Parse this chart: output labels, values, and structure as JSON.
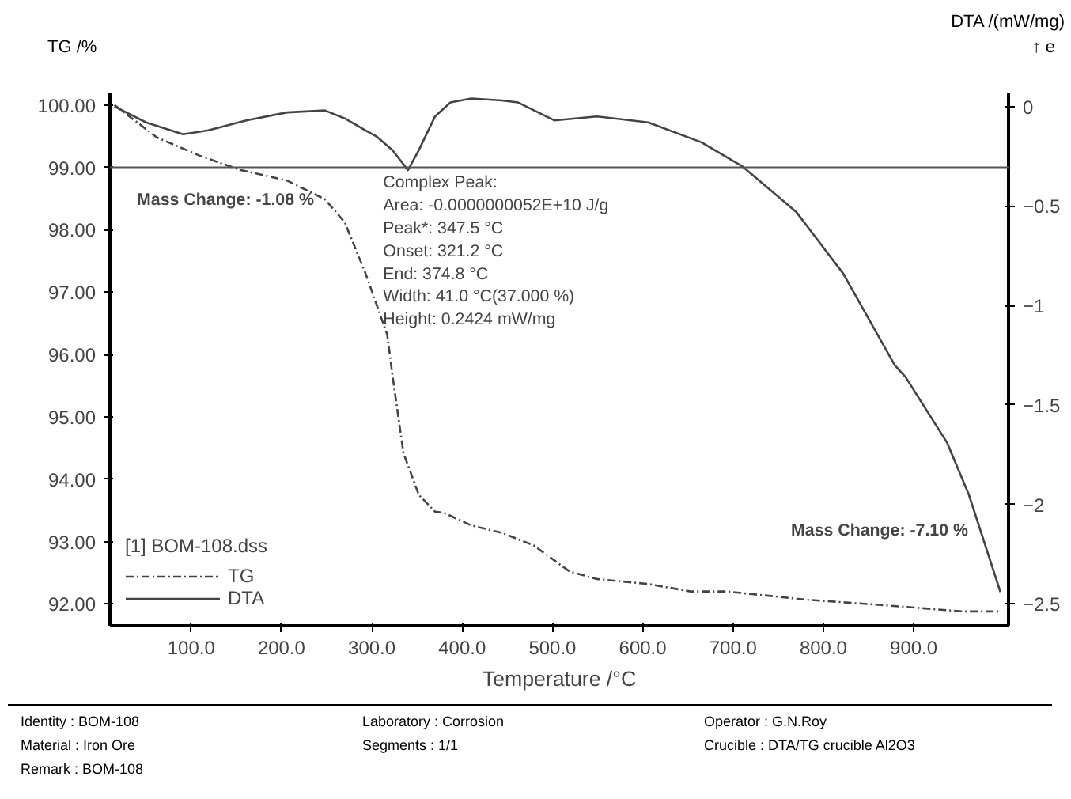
{
  "chart_data": {
    "type": "line",
    "xlabel": "Temperature /°C",
    "ylabel": "TG /%",
    "y2label": "DTA /(mW/mg)",
    "legend_title": "[1] BOM-108.dss",
    "legend": "bottom left",
    "grid": false,
    "marker": "none",
    "xlim": [
      10,
      1005
    ],
    "xticks": [
      {
        "value": 100,
        "label": "100.0"
      },
      {
        "value": 200,
        "label": "200.0"
      },
      {
        "value": 300,
        "label": "300.0"
      },
      {
        "value": 400,
        "label": "400.0"
      },
      {
        "value": 500,
        "label": "500.0"
      },
      {
        "value": 600,
        "label": "600.0"
      },
      {
        "value": 700,
        "label": "700.0"
      },
      {
        "value": 800,
        "label": "800.0"
      },
      {
        "value": 900,
        "label": "900.0"
      }
    ],
    "ylim": [
      91.65,
      100.2
    ],
    "yticks": [
      {
        "value": 92,
        "label": "92.00"
      },
      {
        "value": 93,
        "label": "93.00"
      },
      {
        "value": 94,
        "label": "94.00"
      },
      {
        "value": 95,
        "label": "95.00"
      },
      {
        "value": 96,
        "label": "96.00"
      },
      {
        "value": 97,
        "label": "97.00"
      },
      {
        "value": 98,
        "label": "98.00"
      },
      {
        "value": 99,
        "label": "99.00"
      },
      {
        "value": 100,
        "label": "100.00"
      }
    ],
    "y2lim": [
      -2.61,
      0.07
    ],
    "y2ticks": [
      0,
      -0.5,
      -1,
      -1.5,
      -2,
      -2.5
    ],
    "series": [
      {
        "name": "TG",
        "color": "#444444",
        "line_style": "dashed",
        "x": [
          15,
          62,
          109,
          154,
          206,
          248,
          270,
          293,
          317,
          323,
          335,
          352,
          370,
          380,
          410,
          444,
          479,
          519,
          549,
          606,
          653,
          693,
          780,
          867,
          954,
          996
        ],
        "values": [
          100,
          99.48,
          99.19,
          98.96,
          98.79,
          98.49,
          98.12,
          97.3,
          96.32,
          95.65,
          94.42,
          93.75,
          93.48,
          93.46,
          93.26,
          93.14,
          92.94,
          92.52,
          92.4,
          92.32,
          92.2,
          92.2,
          92.07,
          91.98,
          91.88,
          91.88
        ]
      },
      {
        "name": "DTA",
        "color": "#444444",
        "line_style": "solid",
        "axis": "y2",
        "x": [
          15,
          50,
          91,
          119,
          161,
          206,
          248,
          270,
          293,
          305,
          323,
          340,
          352,
          370,
          387,
          410,
          444,
          462,
          502,
          549,
          606,
          665,
          710,
          770,
          822,
          879,
          891,
          937,
          961,
          996
        ],
        "values": [
          0,
          -0.08,
          -0.14,
          -0.12,
          -0.07,
          -0.03,
          -0.02,
          -0.06,
          -0.12,
          -0.15,
          -0.22,
          -0.32,
          -0.22,
          -0.05,
          0.02,
          0.04,
          0.03,
          0.02,
          -0.07,
          -0.05,
          -0.08,
          -0.18,
          -0.3,
          -0.53,
          -0.84,
          -1.3,
          -1.36,
          -1.69,
          -1.95,
          -2.44
        ]
      }
    ],
    "ref_lines": [
      {
        "axis": "y",
        "value": 99,
        "color": "#555555"
      }
    ],
    "annotations": [
      "Mass Change: -1.08 %",
      "Mass Change: -7.10 %",
      {
        "text": "Complex Peak:\nArea:     -0.0000000052E+10 J/g\nPeak*:   347.5 °C\nOnset:   321.2 °C\nEnd:      374.8 °C\nWidth:    41.0 °C(37.000 %)\nHeight:    0.2424 mW/mg",
        "x": 347.5,
        "y": 98.9
      },
      "↑ e",
      "Identity : BOM-108",
      "Laboratory : Corrosion",
      "Operator : G.N.Roy",
      "Material : Iron Ore",
      "Segments : 1/1",
      "Crucible : DTA/TG crucible Al2O3",
      "Remark : BOM-108"
    ]
  }
}
